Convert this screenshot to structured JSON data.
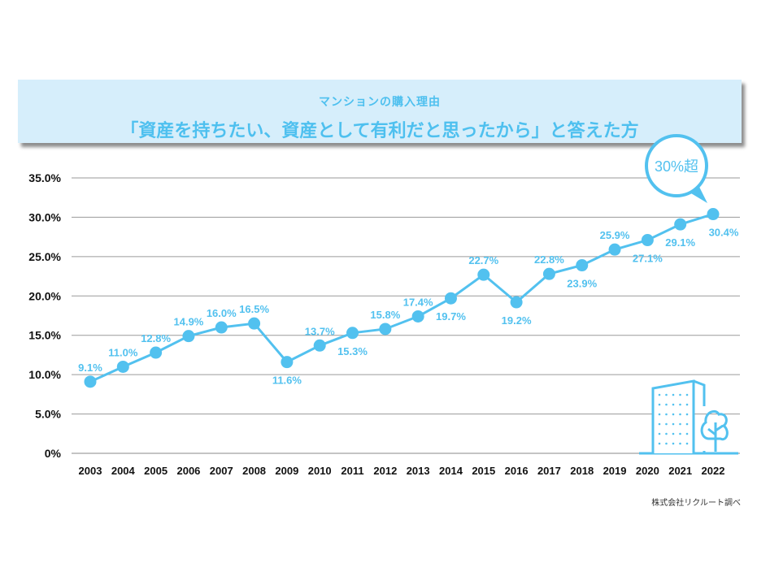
{
  "header": {
    "subtitle": "マンションの購入理由",
    "title": "「資産を持ちたい、資産として有利だと思ったから」と答えた方"
  },
  "callout": "30%超",
  "source": "株式会社リクルート調べ",
  "colors": {
    "line": "#52c1ef",
    "grid": "#9a9a9a",
    "banner": "#d6eefb"
  },
  "chart_data": {
    "type": "line",
    "title": "「資産を持ちたい、資産として有利だと思ったから」と答えた方",
    "xlabel": "",
    "ylabel": "",
    "ylim": [
      0,
      35
    ],
    "yticks": [
      "0%",
      "5.0%",
      "10.0%",
      "15.0%",
      "20.0%",
      "25.0%",
      "30.0%",
      "35.0%"
    ],
    "categories": [
      "2003",
      "2004",
      "2005",
      "2006",
      "2007",
      "2008",
      "2009",
      "2010",
      "2011",
      "2012",
      "2013",
      "2014",
      "2015",
      "2016",
      "2017",
      "2018",
      "2019",
      "2020",
      "2021",
      "2022"
    ],
    "values": [
      9.1,
      11.0,
      12.8,
      14.9,
      16.0,
      16.5,
      11.6,
      13.7,
      15.3,
      15.8,
      17.4,
      19.7,
      22.7,
      19.2,
      22.8,
      23.9,
      25.9,
      27.1,
      29.1,
      30.4
    ],
    "labels": [
      "9.1%",
      "11.0%",
      "12.8%",
      "14.9%",
      "16.0%",
      "16.5%",
      "11.6%",
      "13.7%",
      "15.3%",
      "15.8%",
      "17.4%",
      "19.7%",
      "22.7%",
      "19.2%",
      "22.8%",
      "23.9%",
      "25.9%",
      "27.1%",
      "29.1%",
      "30.4%"
    ],
    "grid": true
  }
}
